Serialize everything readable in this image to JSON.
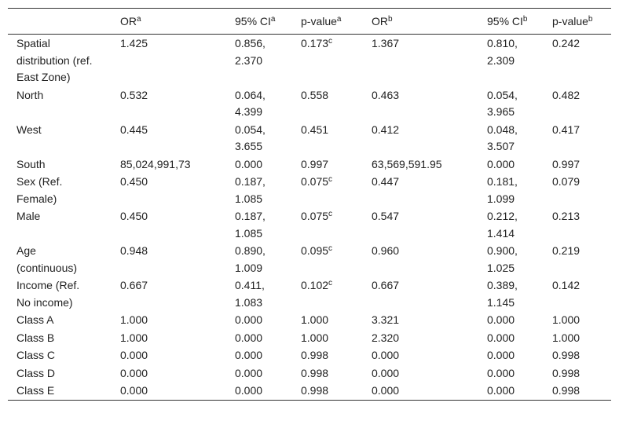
{
  "table": {
    "header": [
      {
        "text": "OR",
        "sup": "a"
      },
      {
        "text": "95% CI",
        "sup": "a"
      },
      {
        "text": "p-value",
        "sup": "a"
      },
      {
        "text": "OR",
        "sup": "b"
      },
      {
        "text": "95% CI",
        "sup": "b"
      },
      {
        "text": "p-value",
        "sup": "b"
      }
    ],
    "rows": [
      [
        "Spatial distribution (ref. East Zone)",
        "1.425",
        "0.856, 2.370",
        {
          "text": "0.173",
          "sup": "c"
        },
        "1.367",
        "0.810, 2.309",
        "0.242"
      ],
      [
        "North",
        "0.532",
        "0.064, 4.399",
        "0.558",
        "0.463",
        "0.054, 3.965",
        "0.482"
      ],
      [
        "West",
        "0.445",
        "0.054, 3.655",
        "0.451",
        "0.412",
        "0.048, 3.507",
        "0.417"
      ],
      [
        "South",
        "85,024,991,73",
        "0.000",
        "0.997",
        "63,569,591.95",
        "0.000",
        "0.997"
      ],
      [
        "Sex (Ref. Female)",
        "0.450",
        "0.187, 1.085",
        {
          "text": "0.075",
          "sup": "c"
        },
        "0.447",
        "0.181, 1.099",
        "0.079"
      ],
      [
        "Male",
        "0.450",
        "0.187, 1.085",
        {
          "text": "0.075",
          "sup": "c"
        },
        "0.547",
        "0.212, 1.414",
        "0.213"
      ],
      [
        "Age (continuous)",
        "0.948",
        "0.890, 1.009",
        {
          "text": "0.095",
          "sup": "c"
        },
        "0.960",
        "0.900, 1.025",
        "0.219"
      ],
      [
        "Income (Ref. No income)",
        "0.667",
        "0.411, 1.083",
        {
          "text": "0.102",
          "sup": "c"
        },
        "0.667",
        "0.389, 1.145",
        "0.142"
      ],
      [
        "Class A",
        "1.000",
        "0.000",
        "1.000",
        "3.321",
        "0.000",
        "1.000"
      ],
      [
        "Class B",
        "1.000",
        "0.000",
        "1.000",
        "2.320",
        "0.000",
        "1.000"
      ],
      [
        "Class C",
        "0.000",
        "0.000",
        "0.998",
        "0.000",
        "0.000",
        "0.998"
      ],
      [
        "Class D",
        "0.000",
        "0.000",
        "0.998",
        "0.000",
        "0.000",
        "0.998"
      ],
      [
        "Class E",
        "0.000",
        "0.000",
        "0.998",
        "0.000",
        "0.000",
        "0.998"
      ]
    ]
  }
}
